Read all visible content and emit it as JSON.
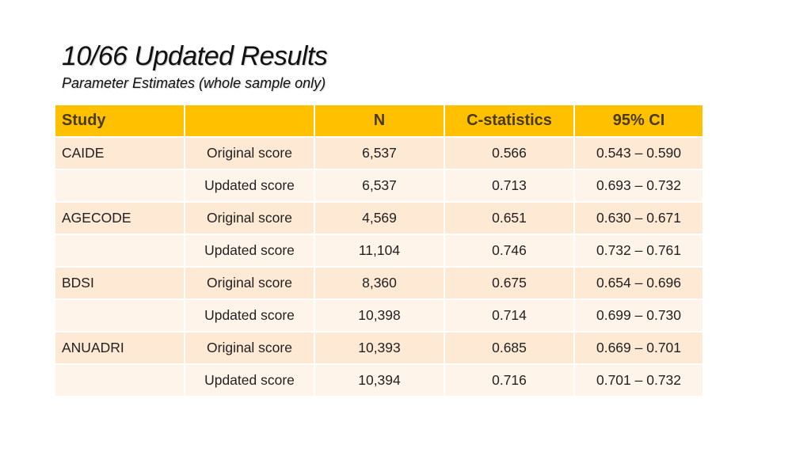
{
  "slide": {
    "title": "10/66 Updated Results",
    "subtitle": "Parameter Estimates (whole sample only)"
  },
  "table": {
    "headers": [
      "Study",
      "",
      "N",
      "C-statistics",
      "95% CI"
    ],
    "rows": [
      {
        "study": "CAIDE",
        "score": "Original score",
        "n": "6,537",
        "c_statistic": "0.566",
        "ci": "0.543 – 0.590"
      },
      {
        "study": "",
        "score": "Updated score",
        "n": "6,537",
        "c_statistic": "0.713",
        "ci": "0.693 – 0.732"
      },
      {
        "study": "AGECODE",
        "score": "Original score",
        "n": "4,569",
        "c_statistic": "0.651",
        "ci": "0.630 – 0.671"
      },
      {
        "study": "",
        "score": "Updated score",
        "n": "11,104",
        "c_statistic": "0.746",
        "ci": "0.732 – 0.761"
      },
      {
        "study": "BDSI",
        "score": "Original score",
        "n": "8,360",
        "c_statistic": "0.675",
        "ci": "0.654 – 0.696"
      },
      {
        "study": "",
        "score": "Updated score",
        "n": "10,398",
        "c_statistic": "0.714",
        "ci": "0.699 – 0.730"
      },
      {
        "study": "ANUADRI",
        "score": "Original score",
        "n": "10,393",
        "c_statistic": "0.685",
        "ci": "0.669 – 0.701"
      },
      {
        "study": "",
        "score": "Updated score",
        "n": "10,394",
        "c_statistic": "0.716",
        "ci": "0.701 – 0.732"
      }
    ]
  },
  "colors": {
    "header_bg": "#ffc000",
    "header_text": "#4a3a14",
    "row_odd_bg": "#fde9d4",
    "row_even_bg": "#fef4ea"
  }
}
